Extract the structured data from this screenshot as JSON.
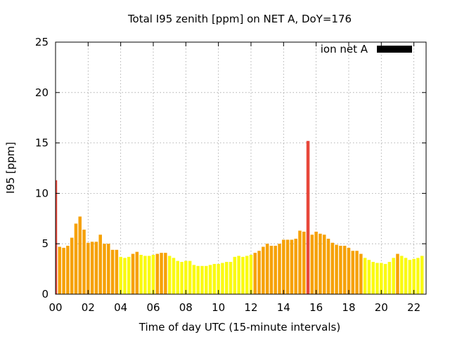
{
  "chart_data": {
    "type": "bar",
    "title": "Total I95 zenith [ppm] on NET A, DoY=176",
    "xlabel": "Time of day UTC (15-minute intervals)",
    "ylabel": "I95 [ppm]",
    "xlim": [
      0,
      22.75
    ],
    "ylim": [
      0,
      25
    ],
    "x_ticks": [
      {
        "value": 0,
        "label": "00"
      },
      {
        "value": 2,
        "label": "02"
      },
      {
        "value": 4,
        "label": "04"
      },
      {
        "value": 6,
        "label": "06"
      },
      {
        "value": 8,
        "label": "08"
      },
      {
        "value": 10,
        "label": "10"
      },
      {
        "value": 12,
        "label": "12"
      },
      {
        "value": 14,
        "label": "14"
      },
      {
        "value": 16,
        "label": "16"
      },
      {
        "value": 18,
        "label": "18"
      },
      {
        "value": 20,
        "label": "20"
      },
      {
        "value": 22,
        "label": "22"
      }
    ],
    "y_ticks": [
      0,
      5,
      10,
      15,
      20,
      25
    ],
    "grid": true,
    "legend": {
      "position": "top-right",
      "entries": [
        {
          "label": "ion net A",
          "color": "#000000"
        }
      ]
    },
    "bar_step_hours": 0.25,
    "bar_color_rule": "value >= 10 -> red, 4 <= value < 10 -> orange, value < 4 -> yellow",
    "colors": {
      "red": "#e8473a",
      "orange": "#f6a106",
      "yellow": "#fafa12"
    },
    "series": [
      {
        "name": "ion net A",
        "x": [
          0.0,
          0.25,
          0.5,
          0.75,
          1.0,
          1.25,
          1.5,
          1.75,
          2.0,
          2.25,
          2.5,
          2.75,
          3.0,
          3.25,
          3.5,
          3.75,
          4.0,
          4.25,
          4.5,
          4.75,
          5.0,
          5.25,
          5.5,
          5.75,
          6.0,
          6.25,
          6.5,
          6.75,
          7.0,
          7.25,
          7.5,
          7.75,
          8.0,
          8.25,
          8.5,
          8.75,
          9.0,
          9.25,
          9.5,
          9.75,
          10.0,
          10.25,
          10.5,
          10.75,
          11.0,
          11.25,
          11.5,
          11.75,
          12.0,
          12.25,
          12.5,
          12.75,
          13.0,
          13.25,
          13.5,
          13.75,
          14.0,
          14.25,
          14.5,
          14.75,
          15.0,
          15.25,
          15.5,
          15.75,
          16.0,
          16.25,
          16.5,
          16.75,
          17.0,
          17.25,
          17.5,
          17.75,
          18.0,
          18.25,
          18.5,
          18.75,
          19.0,
          19.25,
          19.5,
          19.75,
          20.0,
          20.25,
          20.5,
          20.75,
          21.0,
          21.25,
          21.5,
          21.75,
          22.0,
          22.25,
          22.5
        ],
        "values": [
          11.3,
          4.7,
          4.6,
          4.8,
          5.6,
          7.0,
          7.7,
          6.4,
          5.1,
          5.2,
          5.2,
          5.9,
          5.0,
          5.0,
          4.4,
          4.4,
          3.7,
          3.6,
          3.7,
          4.0,
          4.2,
          3.9,
          3.8,
          3.8,
          3.9,
          4.0,
          4.1,
          4.1,
          3.8,
          3.6,
          3.3,
          3.2,
          3.3,
          3.3,
          2.9,
          2.8,
          2.8,
          2.8,
          2.9,
          3.0,
          3.0,
          3.1,
          3.2,
          3.2,
          3.7,
          3.8,
          3.7,
          3.8,
          3.9,
          4.1,
          4.3,
          4.7,
          5.0,
          4.8,
          4.8,
          5.0,
          5.4,
          5.4,
          5.4,
          5.5,
          6.3,
          6.2,
          15.2,
          5.9,
          6.2,
          6.0,
          5.9,
          5.5,
          5.1,
          4.9,
          4.8,
          4.8,
          4.6,
          4.3,
          4.3,
          4.0,
          3.6,
          3.4,
          3.2,
          3.1,
          3.1,
          3.0,
          3.2,
          3.6,
          4.0,
          3.8,
          3.6,
          3.4,
          3.5,
          3.6,
          3.8
        ]
      }
    ]
  }
}
